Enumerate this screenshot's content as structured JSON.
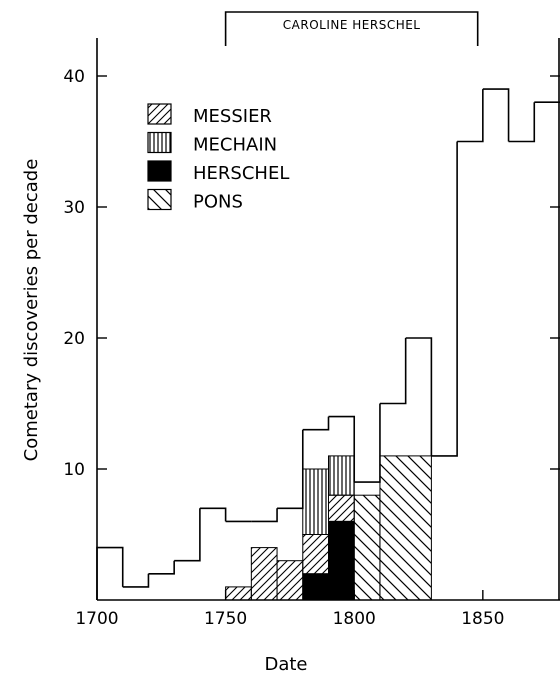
{
  "chart_data": {
    "type": "histogram",
    "xlabel": "Date",
    "ylabel": "Cometary discoveries per decade",
    "xlim": [
      1700,
      1880
    ],
    "ylim": [
      0,
      43
    ],
    "x_ticks": [
      1700,
      1750,
      1800,
      1850
    ],
    "y_ticks": [
      10,
      20,
      30,
      40
    ],
    "bin_width_years": 10,
    "total": {
      "bins": [
        1700,
        1710,
        1720,
        1730,
        1740,
        1750,
        1760,
        1770,
        1780,
        1790,
        1800,
        1810,
        1820,
        1830,
        1840,
        1850,
        1860,
        1870
      ],
      "values": [
        4,
        1,
        2,
        3,
        7,
        6,
        6,
        7,
        13,
        14,
        9,
        15,
        20,
        11,
        35,
        39,
        35,
        38
      ]
    },
    "stacked_series": [
      {
        "name": "HERSCHEL",
        "pattern": "solid",
        "segments": [
          {
            "x0": 1780,
            "x1": 1790,
            "y0": 0,
            "y1": 2
          },
          {
            "x0": 1790,
            "x1": 1800,
            "y0": 0,
            "y1": 6
          }
        ]
      },
      {
        "name": "MESSIER",
        "pattern": "diagonal-up",
        "segments": [
          {
            "x0": 1750,
            "x1": 1760,
            "y0": 0,
            "y1": 1
          },
          {
            "x0": 1760,
            "x1": 1770,
            "y0": 0,
            "y1": 4
          },
          {
            "x0": 1770,
            "x1": 1780,
            "y0": 0,
            "y1": 3
          },
          {
            "x0": 1780,
            "x1": 1790,
            "y0": 2,
            "y1": 5
          },
          {
            "x0": 1790,
            "x1": 1800,
            "y0": 6,
            "y1": 8
          }
        ]
      },
      {
        "name": "MECHAIN",
        "pattern": "vertical",
        "segments": [
          {
            "x0": 1780,
            "x1": 1790,
            "y0": 5,
            "y1": 10
          },
          {
            "x0": 1790,
            "x1": 1800,
            "y0": 8,
            "y1": 11
          }
        ]
      },
      {
        "name": "PONS",
        "pattern": "diagonal-down",
        "segments": [
          {
            "x0": 1800,
            "x1": 1810,
            "y0": 0,
            "y1": 8
          },
          {
            "x0": 1810,
            "x1": 1830,
            "y0": 0,
            "y1": 11
          }
        ]
      }
    ],
    "annotation_span": {
      "label": "CAROLINE HERSCHEL",
      "x0": 1750,
      "x1": 1848
    },
    "legend": {
      "placement": "top-left",
      "entries": [
        {
          "name": "MESSIER",
          "pattern": "diagonal-up"
        },
        {
          "name": "MECHAIN",
          "pattern": "vertical"
        },
        {
          "name": "HERSCHEL",
          "pattern": "solid"
        },
        {
          "name": "PONS",
          "pattern": "diagonal-down"
        }
      ]
    }
  }
}
